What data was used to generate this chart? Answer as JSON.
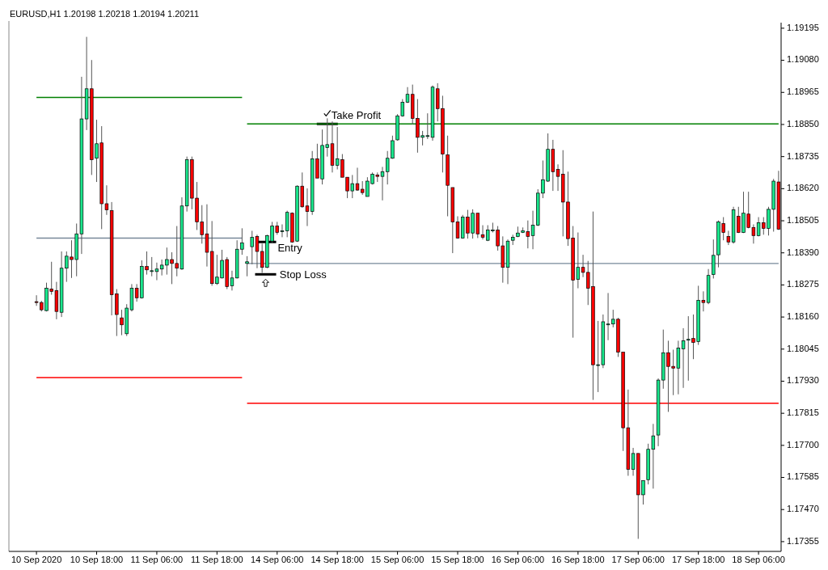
{
  "chart_data": {
    "type": "candlestick",
    "title": "EURUSD,H1  1.20198 1.20218 1.20194 1.20211",
    "categories": [
      "10 Sep 2020",
      null,
      null,
      null,
      null,
      null,
      null,
      null,
      null,
      null,
      null,
      null,
      "10 Sep 18:00",
      null,
      null,
      null,
      null,
      null,
      null,
      null,
      null,
      null,
      null,
      null,
      "11 Sep 06:00",
      null,
      null,
      null,
      null,
      null,
      null,
      null,
      null,
      null,
      null,
      null,
      "11 Sep 18:00",
      null,
      null,
      null,
      null,
      null,
      null,
      null,
      null,
      null,
      null,
      null,
      "14 Sep 06:00",
      null,
      null,
      null,
      null,
      null,
      null,
      null,
      null,
      null,
      null,
      null,
      "14 Sep 18:00",
      null,
      null,
      null,
      null,
      null,
      null,
      null,
      null,
      null,
      null,
      null,
      "15 Sep 06:00",
      null,
      null,
      null,
      null,
      null,
      null,
      null,
      null,
      null,
      null,
      null,
      "15 Sep 18:00",
      null,
      null,
      null,
      null,
      null,
      null,
      null,
      null,
      null,
      null,
      null,
      "16 Sep 06:00",
      null,
      null,
      null,
      null,
      null,
      null,
      null,
      null,
      null,
      null,
      null,
      "16 Sep 18:00",
      null,
      null,
      null,
      null,
      null,
      null,
      null,
      null,
      null,
      null,
      null,
      "17 Sep 06:00",
      null,
      null,
      null,
      null,
      null,
      null,
      null,
      null,
      null,
      null,
      null,
      "17 Sep 18:00",
      null,
      null,
      null,
      null,
      null,
      null,
      null,
      null,
      null,
      null,
      null,
      "18 Sep 06:00",
      null,
      null,
      null,
      null
    ],
    "ohlc": [
      [
        1.18215,
        1.18238,
        1.182,
        1.18212
      ],
      [
        1.18212,
        1.18218,
        1.1818,
        1.18186
      ],
      [
        1.18183,
        1.18283,
        1.1818,
        1.18263
      ],
      [
        1.1826,
        1.18358,
        1.1824,
        1.18252
      ],
      [
        1.18255,
        1.18286,
        1.18152,
        1.1818
      ],
      [
        1.18177,
        1.18395,
        1.1816,
        1.18335
      ],
      [
        1.18335,
        1.18395,
        1.18286,
        1.18378
      ],
      [
        1.18375,
        1.18435,
        1.183,
        1.18366
      ],
      [
        1.18366,
        1.18495,
        1.18306,
        1.18458
      ],
      [
        1.18458,
        1.19021,
        1.18386,
        1.1887
      ],
      [
        1.1887,
        1.19164,
        1.1883,
        1.18978
      ],
      [
        1.18978,
        1.19081,
        1.18669,
        1.18724
      ],
      [
        1.18729,
        1.18867,
        1.18644,
        1.18781
      ],
      [
        1.18784,
        1.18844,
        1.18475,
        1.18566
      ],
      [
        1.18566,
        1.18632,
        1.18526,
        1.18544
      ],
      [
        1.18541,
        1.18572,
        1.18166,
        1.1824
      ],
      [
        1.18243,
        1.1826,
        1.18092,
        1.18169
      ],
      [
        1.18157,
        1.18186,
        1.18095,
        1.18132
      ],
      [
        1.181,
        1.18206,
        1.18092,
        1.18192
      ],
      [
        1.18186,
        1.18278,
        1.1818,
        1.18263
      ],
      [
        1.18263,
        1.18278,
        1.18215,
        1.18229
      ],
      [
        1.18229,
        1.18363,
        1.18226,
        1.18341
      ],
      [
        1.18341,
        1.18395,
        1.18312,
        1.18329
      ],
      [
        1.18323,
        1.18375,
        1.18306,
        1.18326
      ],
      [
        1.18323,
        1.18355,
        1.18292,
        1.18332
      ],
      [
        1.18332,
        1.18366,
        1.18309,
        1.18346
      ],
      [
        1.18346,
        1.18409,
        1.18312,
        1.18366
      ],
      [
        1.18366,
        1.18392,
        1.18278,
        1.18352
      ],
      [
        1.18352,
        1.18486,
        1.18306,
        1.18335
      ],
      [
        1.18332,
        1.18589,
        1.18329,
        1.18558
      ],
      [
        1.18558,
        1.18735,
        1.18538,
        1.18724
      ],
      [
        1.18724,
        1.18735,
        1.18546,
        1.18586
      ],
      [
        1.18586,
        1.18644,
        1.18472,
        1.18501
      ],
      [
        1.18501,
        1.18561,
        1.18423,
        1.18455
      ],
      [
        1.18458,
        1.18564,
        1.18341,
        1.18392
      ],
      [
        1.18395,
        1.18504,
        1.18272,
        1.1828
      ],
      [
        1.1828,
        1.18383,
        1.18275,
        1.18303
      ],
      [
        1.183,
        1.18401,
        1.18298,
        1.18363
      ],
      [
        1.18366,
        1.18375,
        1.1826,
        1.18269
      ],
      [
        1.18272,
        1.18326,
        1.18255,
        1.183
      ],
      [
        1.183,
        1.18435,
        1.18298,
        1.18403
      ],
      [
        1.18403,
        1.18478,
        1.18383,
        1.18426
      ],
      [
        1.18352,
        1.18378,
        1.18306,
        1.18358
      ],
      [
        1.18412,
        1.18469,
        1.18349,
        1.18446
      ],
      [
        1.18449,
        1.18455,
        1.18335,
        1.18395
      ],
      [
        1.18395,
        1.18423,
        1.18318,
        1.18338
      ],
      [
        1.18338,
        1.18455,
        1.18335,
        1.18452
      ],
      [
        1.18432,
        1.18501,
        1.18426,
        1.18486
      ],
      [
        1.18486,
        1.18501,
        1.18455,
        1.18463
      ],
      [
        1.18466,
        1.18492,
        1.18446,
        1.18469
      ],
      [
        1.18469,
        1.18541,
        1.18446,
        1.18535
      ],
      [
        1.18532,
        1.18535,
        1.18426,
        1.18429
      ],
      [
        1.18432,
        1.18632,
        1.18429,
        1.18629
      ],
      [
        1.18629,
        1.18678,
        1.18552,
        1.18555
      ],
      [
        1.18558,
        1.18621,
        1.18486,
        1.18538
      ],
      [
        1.18538,
        1.18755,
        1.18526,
        1.18727
      ],
      [
        1.18727,
        1.18781,
        1.18658,
        1.18658
      ],
      [
        1.18655,
        1.18832,
        1.18635,
        1.18775
      ],
      [
        1.18767,
        1.18872,
        1.18735,
        1.18778
      ],
      [
        1.18781,
        1.18861,
        1.18678,
        1.18704
      ],
      [
        1.18704,
        1.18841,
        1.18689,
        1.18727
      ],
      [
        1.18724,
        1.18744,
        1.18661,
        1.18661
      ],
      [
        1.18661,
        1.18661,
        1.18586,
        1.18612
      ],
      [
        1.18612,
        1.18669,
        1.18586,
        1.18638
      ],
      [
        1.18638,
        1.18695,
        1.18612,
        1.18615
      ],
      [
        1.18618,
        1.18647,
        1.18598,
        1.18606
      ],
      [
        1.18592,
        1.18661,
        1.18592,
        1.18647
      ],
      [
        1.18638,
        1.18678,
        1.18635,
        1.18672
      ],
      [
        1.18669,
        1.18678,
        1.18644,
        1.18664
      ],
      [
        1.18664,
        1.18698,
        1.18578,
        1.18681
      ],
      [
        1.18681,
        1.18755,
        1.18635,
        1.18729
      ],
      [
        1.18729,
        1.1881,
        1.18727,
        1.18792
      ],
      [
        1.18795,
        1.18887,
        1.18792,
        1.18881
      ],
      [
        1.18881,
        1.18941,
        1.18878,
        1.1893
      ],
      [
        1.1893,
        1.18984,
        1.18927,
        1.18958
      ],
      [
        1.18958,
        1.18993,
        1.1885,
        1.18872
      ],
      [
        1.18872,
        1.18941,
        1.18749,
        1.18804
      ],
      [
        1.18804,
        1.18827,
        1.18775,
        1.1881
      ],
      [
        1.18807,
        1.1889,
        1.18798,
        1.1881
      ],
      [
        1.18804,
        1.1899,
        1.18792,
        1.18984
      ],
      [
        1.18978,
        1.18998,
        1.18861,
        1.18907
      ],
      [
        1.18907,
        1.18953,
        1.18678,
        1.18744
      ],
      [
        1.18741,
        1.1881,
        1.18521,
        1.18632
      ],
      [
        1.18624,
        1.18624,
        1.18389,
        1.18501
      ],
      [
        1.18501,
        1.18521,
        1.18441,
        1.18443
      ],
      [
        1.18443,
        1.18526,
        1.18441,
        1.18518
      ],
      [
        1.18518,
        1.18544,
        1.18441,
        1.18461
      ],
      [
        1.18461,
        1.18546,
        1.18441,
        1.18532
      ],
      [
        1.18532,
        1.18532,
        1.18443,
        1.18458
      ],
      [
        1.18455,
        1.18489,
        1.18438,
        1.18446
      ],
      [
        1.18435,
        1.18489,
        1.18432,
        1.18472
      ],
      [
        1.18472,
        1.18498,
        1.18463,
        1.18472
      ],
      [
        1.18472,
        1.18486,
        1.18398,
        1.18415
      ],
      [
        1.18415,
        1.18449,
        1.18283,
        1.18338
      ],
      [
        1.18338,
        1.18438,
        1.18278,
        1.18432
      ],
      [
        1.18435,
        1.18455,
        1.18418,
        1.18446
      ],
      [
        1.18449,
        1.18484,
        1.18446,
        1.18461
      ],
      [
        1.18463,
        1.18481,
        1.18461,
        1.18469
      ],
      [
        1.18466,
        1.18506,
        1.18406,
        1.18449
      ],
      [
        1.18452,
        1.18541,
        1.18403,
        1.18489
      ],
      [
        1.18489,
        1.18618,
        1.18486,
        1.18604
      ],
      [
        1.18604,
        1.18721,
        1.18586,
        1.18652
      ],
      [
        1.18647,
        1.18818,
        1.18644,
        1.18761
      ],
      [
        1.18761,
        1.18795,
        1.18612,
        1.18681
      ],
      [
        1.18689,
        1.18707,
        1.18612,
        1.18664
      ],
      [
        1.18672,
        1.18758,
        1.18449,
        1.18572
      ],
      [
        1.18572,
        1.18681,
        1.18415,
        1.18441
      ],
      [
        1.18443,
        1.18486,
        1.18086,
        1.18292
      ],
      [
        1.18295,
        1.18463,
        1.18263,
        1.18338
      ],
      [
        1.18338,
        1.18383,
        1.18303,
        1.1832
      ],
      [
        1.1832,
        1.18361,
        1.18203,
        1.18263
      ],
      [
        1.18269,
        1.18538,
        1.17863,
        1.17989
      ],
      [
        1.17989,
        1.18146,
        1.17891,
        1.17989
      ],
      [
        1.17989,
        1.18169,
        1.17977,
        1.18143
      ],
      [
        1.18132,
        1.18246,
        1.18077,
        1.18135
      ],
      [
        1.18135,
        1.18186,
        1.18123,
        1.18152
      ],
      [
        1.18152,
        1.18157,
        1.18017,
        1.18034
      ],
      [
        1.18034,
        1.18034,
        1.1768,
        1.17763
      ],
      [
        1.17763,
        1.179,
        1.17591,
        1.17614
      ],
      [
        1.17614,
        1.17691,
        1.17591,
        1.17671
      ],
      [
        1.17671,
        1.17671,
        1.17365,
        1.17523
      ],
      [
        1.17523,
        1.17574,
        1.17488,
        1.17574
      ],
      [
        1.17577,
        1.17706,
        1.1756,
        1.17686
      ],
      [
        1.17686,
        1.17777,
        1.17545,
        1.17734
      ],
      [
        1.17737,
        1.1794,
        1.17697,
        1.17934
      ],
      [
        1.17934,
        1.18115,
        1.17903,
        1.18032
      ],
      [
        1.18032,
        1.18075,
        1.1782,
        1.17983
      ],
      [
        1.17983,
        1.18043,
        1.1788,
        1.17977
      ],
      [
        1.17977,
        1.18075,
        1.17883,
        1.18049
      ],
      [
        1.18046,
        1.1812,
        1.17906,
        1.18075
      ],
      [
        1.18077,
        1.18163,
        1.17932,
        1.1808
      ],
      [
        1.18083,
        1.18169,
        1.18009,
        1.18069
      ],
      [
        1.18072,
        1.18272,
        1.1806,
        1.1822
      ],
      [
        1.1822,
        1.18252,
        1.1818,
        1.18212
      ],
      [
        1.18212,
        1.18332,
        1.18206,
        1.18309
      ],
      [
        1.18312,
        1.18438,
        1.18298,
        1.18381
      ],
      [
        1.18383,
        1.18506,
        1.18338,
        1.18501
      ],
      [
        1.18495,
        1.18518,
        1.18435,
        1.18463
      ],
      [
        1.18449,
        1.18469,
        1.18418,
        1.18429
      ],
      [
        1.18429,
        1.18555,
        1.18423,
        1.18544
      ],
      [
        1.18521,
        1.18555,
        1.18461,
        1.18463
      ],
      [
        1.18463,
        1.18609,
        1.18461,
        1.18532
      ],
      [
        1.18529,
        1.18609,
        1.18478,
        1.18481
      ],
      [
        1.18481,
        1.18492,
        1.18423,
        1.18452
      ],
      [
        1.18452,
        1.18518,
        1.18449,
        1.18498
      ],
      [
        1.18498,
        1.18518,
        1.18455,
        1.18478
      ],
      [
        1.18478,
        1.18555,
        1.18452,
        1.18546
      ],
      [
        1.18546,
        1.18655,
        1.18466,
        1.18647
      ],
      [
        1.18644,
        1.18684,
        1.18472,
        1.18475
      ]
    ],
    "series": [
      {
        "type": "line",
        "color": "#008000",
        "values": [
          1.18947,
          1.18947,
          1.18947,
          1.18947,
          1.18947,
          1.18947,
          1.18947,
          1.18947,
          1.18947,
          1.18947,
          1.18947,
          1.18947,
          1.18947,
          1.18947,
          1.18947,
          1.18947,
          1.18947,
          1.18947,
          1.18947,
          1.18947,
          1.18947,
          1.18947,
          1.18947,
          1.18947,
          1.18947,
          1.18947,
          1.18947,
          1.18947,
          1.18947,
          1.18947,
          1.18947,
          1.18947,
          1.18947,
          1.18947,
          1.18947,
          1.18947,
          1.18947,
          1.18947,
          1.18947,
          1.18947,
          1.18947,
          1.18947,
          null,
          null,
          null,
          null,
          null,
          null,
          null,
          null,
          null,
          null,
          null,
          null,
          null,
          null,
          null,
          null,
          null,
          null,
          null,
          null,
          null,
          null,
          null,
          null,
          null,
          null,
          null,
          null,
          null,
          null,
          null,
          null,
          null,
          null,
          null,
          null,
          null,
          null,
          null,
          null,
          null,
          null,
          null,
          null,
          null,
          null,
          null,
          null,
          null,
          null,
          null,
          null,
          null,
          null,
          null,
          null,
          null,
          null,
          null,
          null,
          null,
          null,
          null,
          null,
          null,
          null,
          null,
          null,
          null,
          null,
          null,
          null,
          null,
          null,
          null,
          null,
          null,
          null,
          null,
          null,
          null,
          null,
          null,
          null,
          null,
          null,
          null,
          null,
          null,
          null,
          null,
          null,
          null,
          null,
          null,
          null,
          null,
          null,
          null,
          null,
          null,
          null,
          null,
          null,
          null,
          null,
          null
        ]
      },
      {
        "type": "line",
        "color": "#778899",
        "values": [
          1.18443,
          1.18443,
          1.18443,
          1.18443,
          1.18443,
          1.18443,
          1.18443,
          1.18443,
          1.18443,
          1.18443,
          1.18443,
          1.18443,
          1.18443,
          1.18443,
          1.18443,
          1.18443,
          1.18443,
          1.18443,
          1.18443,
          1.18443,
          1.18443,
          1.18443,
          1.18443,
          1.18443,
          1.18443,
          1.18443,
          1.18443,
          1.18443,
          1.18443,
          1.18443,
          1.18443,
          1.18443,
          1.18443,
          1.18443,
          1.18443,
          1.18443,
          1.18443,
          1.18443,
          1.18443,
          1.18443,
          1.18443,
          1.18443,
          null,
          null,
          null,
          null,
          null,
          null,
          null,
          null,
          null,
          null,
          null,
          null,
          null,
          null,
          null,
          null,
          null,
          null,
          null,
          null,
          null,
          null,
          null,
          null,
          null,
          null,
          null,
          null,
          null,
          null,
          null,
          null,
          null,
          null,
          null,
          null,
          null,
          null,
          null,
          null,
          null,
          null,
          null,
          null,
          null,
          null,
          null,
          null,
          null,
          null,
          null,
          null,
          null,
          null,
          null,
          null,
          null,
          null,
          null,
          null,
          null,
          null,
          null,
          null,
          null,
          null,
          null,
          null,
          null,
          null,
          null,
          null,
          null,
          null,
          null,
          null,
          null,
          null,
          null,
          null,
          null,
          null,
          null,
          null,
          null,
          null,
          null,
          null,
          null,
          null,
          null,
          null,
          null,
          null,
          null,
          null,
          null,
          null,
          null,
          null,
          null,
          null,
          null,
          null,
          null,
          null,
          null
        ]
      },
      {
        "type": "line",
        "color": "#ff0000",
        "values": [
          1.17943,
          1.17943,
          1.17943,
          1.17943,
          1.17943,
          1.17943,
          1.17943,
          1.17943,
          1.17943,
          1.17943,
          1.17943,
          1.17943,
          1.17943,
          1.17943,
          1.17943,
          1.17943,
          1.17943,
          1.17943,
          1.17943,
          1.17943,
          1.17943,
          1.17943,
          1.17943,
          1.17943,
          1.17943,
          1.17943,
          1.17943,
          1.17943,
          1.17943,
          1.17943,
          1.17943,
          1.17943,
          1.17943,
          1.17943,
          1.17943,
          1.17943,
          1.17943,
          1.17943,
          1.17943,
          1.17943,
          1.17943,
          1.17943,
          null,
          null,
          null,
          null,
          null,
          null,
          null,
          null,
          null,
          null,
          null,
          null,
          null,
          null,
          null,
          null,
          null,
          null,
          null,
          null,
          null,
          null,
          null,
          null,
          null,
          null,
          null,
          null,
          null,
          null,
          null,
          null,
          null,
          null,
          null,
          null,
          null,
          null,
          null,
          null,
          null,
          null,
          null,
          null,
          null,
          null,
          null,
          null,
          null,
          null,
          null,
          null,
          null,
          null,
          null,
          null,
          null,
          null,
          null,
          null,
          null,
          null,
          null,
          null,
          null,
          null,
          null,
          null,
          null,
          null,
          null,
          null,
          null,
          null,
          null,
          null,
          null,
          null,
          null,
          null,
          null,
          null,
          null,
          null,
          null,
          null,
          null,
          null,
          null,
          null,
          null,
          null,
          null,
          null,
          null,
          null,
          null,
          null,
          null,
          null,
          null,
          null,
          null,
          null,
          null,
          null,
          null
        ]
      },
      {
        "type": "line",
        "color": "#008000",
        "values": [
          null,
          null,
          null,
          null,
          null,
          null,
          null,
          null,
          null,
          null,
          null,
          null,
          null,
          null,
          null,
          null,
          null,
          null,
          null,
          null,
          null,
          null,
          null,
          null,
          null,
          null,
          null,
          null,
          null,
          null,
          null,
          null,
          null,
          null,
          null,
          null,
          null,
          null,
          null,
          null,
          null,
          null,
          1.18852,
          1.18852,
          1.18852,
          1.18852,
          1.18852,
          1.18852,
          1.18852,
          1.18852,
          1.18852,
          1.18852,
          1.18852,
          1.18852,
          1.18852,
          1.18852,
          1.18852,
          1.18852,
          1.18852,
          1.18852,
          1.18852,
          1.18852,
          1.18852,
          1.18852,
          1.18852,
          1.18852,
          1.18852,
          1.18852,
          1.18852,
          1.18852,
          1.18852,
          1.18852,
          1.18852,
          1.18852,
          1.18852,
          1.18852,
          1.18852,
          1.18852,
          1.18852,
          1.18852,
          1.18852,
          1.18852,
          1.18852,
          1.18852,
          1.18852,
          1.18852,
          1.18852,
          1.18852,
          1.18852,
          1.18852,
          1.18852,
          1.18852,
          1.18852,
          1.18852,
          1.18852,
          1.18852,
          1.18852,
          1.18852,
          1.18852,
          1.18852,
          1.18852,
          1.18852,
          1.18852,
          1.18852,
          1.18852,
          1.18852,
          1.18852,
          1.18852,
          1.18852,
          1.18852,
          1.18852,
          1.18852,
          1.18852,
          1.18852,
          1.18852,
          1.18852,
          1.18852,
          1.18852,
          1.18852,
          1.18852,
          1.18852,
          1.18852,
          1.18852,
          1.18852,
          1.18852,
          1.18852,
          1.18852,
          1.18852,
          1.18852,
          1.18852,
          1.18852,
          1.18852,
          1.18852,
          1.18852,
          1.18852,
          1.18852,
          1.18852,
          1.18852,
          1.18852,
          1.18852,
          1.18852,
          1.18852,
          1.18852,
          1.18852,
          1.18852,
          1.18852,
          1.18852,
          1.18852,
          1.18852
        ]
      },
      {
        "type": "line",
        "color": "#778899",
        "values": [
          null,
          null,
          null,
          null,
          null,
          null,
          null,
          null,
          null,
          null,
          null,
          null,
          null,
          null,
          null,
          null,
          null,
          null,
          null,
          null,
          null,
          null,
          null,
          null,
          null,
          null,
          null,
          null,
          null,
          null,
          null,
          null,
          null,
          null,
          null,
          null,
          null,
          null,
          null,
          null,
          null,
          null,
          1.18352,
          1.18352,
          1.18352,
          1.18352,
          1.18352,
          1.18352,
          1.18352,
          1.18352,
          1.18352,
          1.18352,
          1.18352,
          1.18352,
          1.18352,
          1.18352,
          1.18352,
          1.18352,
          1.18352,
          1.18352,
          1.18352,
          1.18352,
          1.18352,
          1.18352,
          1.18352,
          1.18352,
          1.18352,
          1.18352,
          1.18352,
          1.18352,
          1.18352,
          1.18352,
          1.18352,
          1.18352,
          1.18352,
          1.18352,
          1.18352,
          1.18352,
          1.18352,
          1.18352,
          1.18352,
          1.18352,
          1.18352,
          1.18352,
          1.18352,
          1.18352,
          1.18352,
          1.18352,
          1.18352,
          1.18352,
          1.18352,
          1.18352,
          1.18352,
          1.18352,
          1.18352,
          1.18352,
          1.18352,
          1.18352,
          1.18352,
          1.18352,
          1.18352,
          1.18352,
          1.18352,
          1.18352,
          1.18352,
          1.18352,
          1.18352,
          1.18352,
          1.18352,
          1.18352,
          1.18352,
          1.18352,
          1.18352,
          1.18352,
          1.18352,
          1.18352,
          1.18352,
          1.18352,
          1.18352,
          1.18352,
          1.18352,
          1.18352,
          1.18352,
          1.18352,
          1.18352,
          1.18352,
          1.18352,
          1.18352,
          1.18352,
          1.18352,
          1.18352,
          1.18352,
          1.18352,
          1.18352,
          1.18352,
          1.18352,
          1.18352,
          1.18352,
          1.18352,
          1.18352,
          1.18352,
          1.18352,
          1.18352,
          1.18352,
          1.18352,
          1.18352,
          1.18352,
          1.18352,
          1.18352
        ]
      },
      {
        "type": "line",
        "color": "#ff0000",
        "values": [
          null,
          null,
          null,
          null,
          null,
          null,
          null,
          null,
          null,
          null,
          null,
          null,
          null,
          null,
          null,
          null,
          null,
          null,
          null,
          null,
          null,
          null,
          null,
          null,
          null,
          null,
          null,
          null,
          null,
          null,
          null,
          null,
          null,
          null,
          null,
          null,
          null,
          null,
          null,
          null,
          null,
          null,
          1.17851,
          1.17851,
          1.17851,
          1.17851,
          1.17851,
          1.17851,
          1.17851,
          1.17851,
          1.17851,
          1.17851,
          1.17851,
          1.17851,
          1.17851,
          1.17851,
          1.17851,
          1.17851,
          1.17851,
          1.17851,
          1.17851,
          1.17851,
          1.17851,
          1.17851,
          1.17851,
          1.17851,
          1.17851,
          1.17851,
          1.17851,
          1.17851,
          1.17851,
          1.17851,
          1.17851,
          1.17851,
          1.17851,
          1.17851,
          1.17851,
          1.17851,
          1.17851,
          1.17851,
          1.17851,
          1.17851,
          1.17851,
          1.17851,
          1.17851,
          1.17851,
          1.17851,
          1.17851,
          1.17851,
          1.17851,
          1.17851,
          1.17851,
          1.17851,
          1.17851,
          1.17851,
          1.17851,
          1.17851,
          1.17851,
          1.17851,
          1.17851,
          1.17851,
          1.17851,
          1.17851,
          1.17851,
          1.17851,
          1.17851,
          1.17851,
          1.17851,
          1.17851,
          1.17851,
          1.17851,
          1.17851,
          1.17851,
          1.17851,
          1.17851,
          1.17851,
          1.17851,
          1.17851,
          1.17851,
          1.17851,
          1.17851,
          1.17851,
          1.17851,
          1.17851,
          1.17851,
          1.17851,
          1.17851,
          1.17851,
          1.17851,
          1.17851,
          1.17851,
          1.17851,
          1.17851,
          1.17851,
          1.17851,
          1.17851,
          1.17851,
          1.17851,
          1.17851,
          1.17851,
          1.17851,
          1.17851,
          1.17851,
          1.17851,
          1.17851,
          1.17851,
          1.17851,
          1.17851,
          1.17851
        ]
      }
    ],
    "ylim": [
      1.1732,
      1.19215
    ],
    "yticks": [
      1.17355,
      {
        "value": 1.1747,
        "label": "1.17470"
      },
      1.17585,
      {
        "value": 1.177,
        "label": "1.17700"
      },
      1.17815,
      {
        "value": 1.1793,
        "label": "1.17930"
      },
      1.18045,
      {
        "value": 1.1816,
        "label": "1.18160"
      },
      1.18275,
      {
        "value": 1.1839,
        "label": "1.18390"
      },
      1.18505,
      {
        "value": 1.1862,
        "label": "1.18620"
      },
      1.18735,
      {
        "value": 1.1885,
        "label": "1.18850"
      },
      1.18965,
      {
        "value": 1.1908,
        "label": "1.19080"
      },
      1.19195
    ],
    "annotations": [
      {
        "text": "Take Profit",
        "y": 1.18852
      },
      {
        "text": "Entry",
        "y": 1.18429
      },
      "Stop Loss"
    ]
  }
}
